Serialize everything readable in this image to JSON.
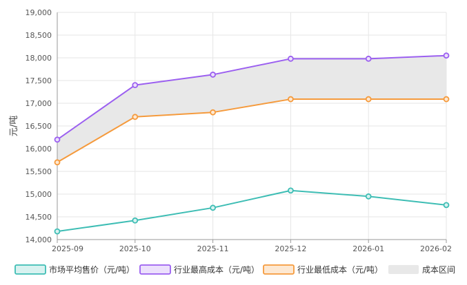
{
  "chart_data": {
    "type": "line",
    "ylabel": "元/吨",
    "categories": [
      "2025-09",
      "2025-10",
      "2025-11",
      "2025-12",
      "2026-01",
      "2026-02"
    ],
    "ylim": [
      14000,
      19000
    ],
    "yticks": [
      14000,
      14500,
      15000,
      15500,
      16000,
      16500,
      17000,
      17500,
      18000,
      18500,
      19000
    ],
    "grid": true,
    "legend_position": "bottom",
    "series": [
      {
        "name": "市场平均售价（元/吨）",
        "color": "#3dbdb4",
        "fill": "#d8f2f0",
        "values": [
          14180,
          14420,
          14700,
          15080,
          14950,
          14760
        ]
      },
      {
        "name": "行业最高成本（元/吨）",
        "color": "#9b5ff0",
        "fill": "#ece0fc",
        "values": [
          16200,
          17400,
          17630,
          17980,
          17980,
          18050
        ]
      },
      {
        "name": "行业最低成本（元/吨）",
        "color": "#f59a3c",
        "fill": "#fde8d2",
        "values": [
          15700,
          16700,
          16800,
          17090,
          17090,
          17090
        ]
      }
    ],
    "band": {
      "name": "成本区间",
      "color": "#e8e8e8",
      "upper_series": 1,
      "lower_series": 2
    }
  }
}
